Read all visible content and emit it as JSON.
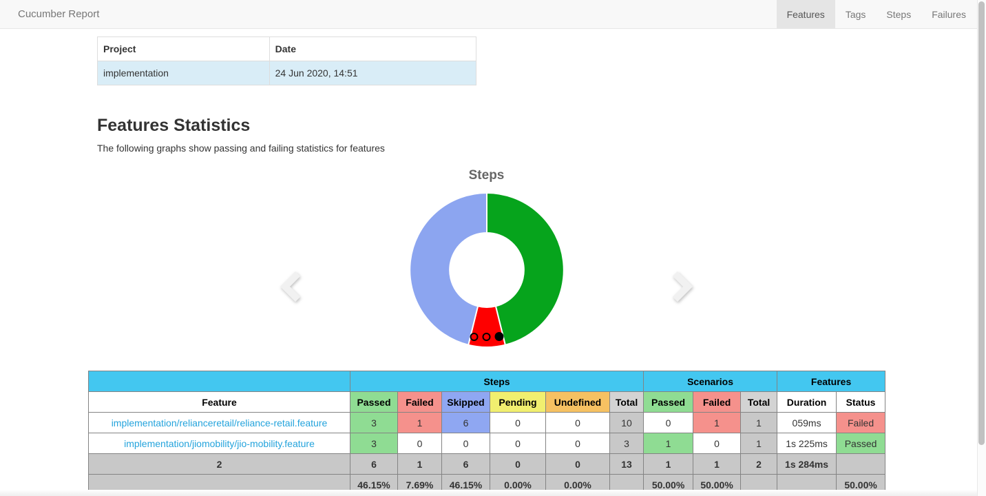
{
  "navbar": {
    "brand": "Cucumber Report",
    "tabs": [
      {
        "label": "Features",
        "active": true
      },
      {
        "label": "Tags",
        "active": false
      },
      {
        "label": "Steps",
        "active": false
      },
      {
        "label": "Failures",
        "active": false
      }
    ]
  },
  "project_table": {
    "headers": {
      "project": "Project",
      "date": "Date"
    },
    "row": {
      "project": "implementation",
      "date": "24 Jun 2020, 14:51"
    }
  },
  "section": {
    "title": "Features Statistics",
    "subtitle": "The following graphs show passing and failing statistics for features"
  },
  "chart_data": {
    "type": "pie",
    "donut": true,
    "title": "Steps",
    "labels": [
      "Passed",
      "Failed",
      "Skipped"
    ],
    "values": [
      6,
      1,
      6
    ],
    "series": [
      {
        "name": "Passed",
        "value": 6,
        "color": "#06a41c"
      },
      {
        "name": "Failed",
        "value": 1,
        "color": "#fe0000"
      },
      {
        "name": "Skipped",
        "value": 6,
        "color": "#8ca5f0"
      }
    ],
    "start_angle_deg": -90,
    "direction": "clockwise",
    "inner_radius_ratio": 0.48,
    "legend_position": "none"
  },
  "carousel": {
    "dots": 3,
    "active_dot": 2
  },
  "stats_table": {
    "group_headers": [
      {
        "label": "",
        "span": 1
      },
      {
        "label": "Steps",
        "span": 6
      },
      {
        "label": "Scenarios",
        "span": 3
      },
      {
        "label": "Features",
        "span": 2
      }
    ],
    "columns": [
      "Feature",
      "Passed",
      "Failed",
      "Skipped",
      "Pending",
      "Undefined",
      "Total",
      "Passed",
      "Failed",
      "Total",
      "Duration",
      "Status"
    ],
    "rows": [
      {
        "feature": "implementation/relianceretail/reliance-retail.feature",
        "steps": {
          "passed": "3",
          "failed": "1",
          "skipped": "6",
          "pending": "0",
          "undefined": "0",
          "total": "10"
        },
        "scenarios": {
          "passed": "0",
          "failed": "1",
          "total": "1"
        },
        "duration": "059ms",
        "status": "Failed"
      },
      {
        "feature": "implementation/jiomobility/jio-mobility.feature",
        "steps": {
          "passed": "3",
          "failed": "0",
          "skipped": "0",
          "pending": "0",
          "undefined": "0",
          "total": "3"
        },
        "scenarios": {
          "passed": "1",
          "failed": "0",
          "total": "1"
        },
        "duration": "1s 225ms",
        "status": "Passed"
      }
    ],
    "totals": {
      "feature": "2",
      "steps": {
        "passed": "6",
        "failed": "1",
        "skipped": "6",
        "pending": "0",
        "undefined": "0",
        "total": "13"
      },
      "scenarios": {
        "passed": "1",
        "failed": "1",
        "total": "2"
      },
      "duration": "1s 284ms",
      "status": ""
    },
    "percents": {
      "steps": {
        "passed": "46.15%",
        "failed": "7.69%",
        "skipped": "46.15%",
        "pending": "0.00%",
        "undefined": "0.00%"
      },
      "scenarios": {
        "passed": "50.00%",
        "failed": "50.00%"
      },
      "status": "50.00%"
    }
  },
  "palette": {
    "header_cyan": "#43c7f0",
    "passed_green": "#8fdc93",
    "failed_red": "#f5918c",
    "skipped_blue": "#8fa7f2",
    "pending_yellow": "#f1ef6f",
    "undefined_orange": "#f6c162",
    "total_gray": "#c8c8c8",
    "link_blue": "#23a3dc",
    "info_row_blue": "#d9edf7"
  }
}
